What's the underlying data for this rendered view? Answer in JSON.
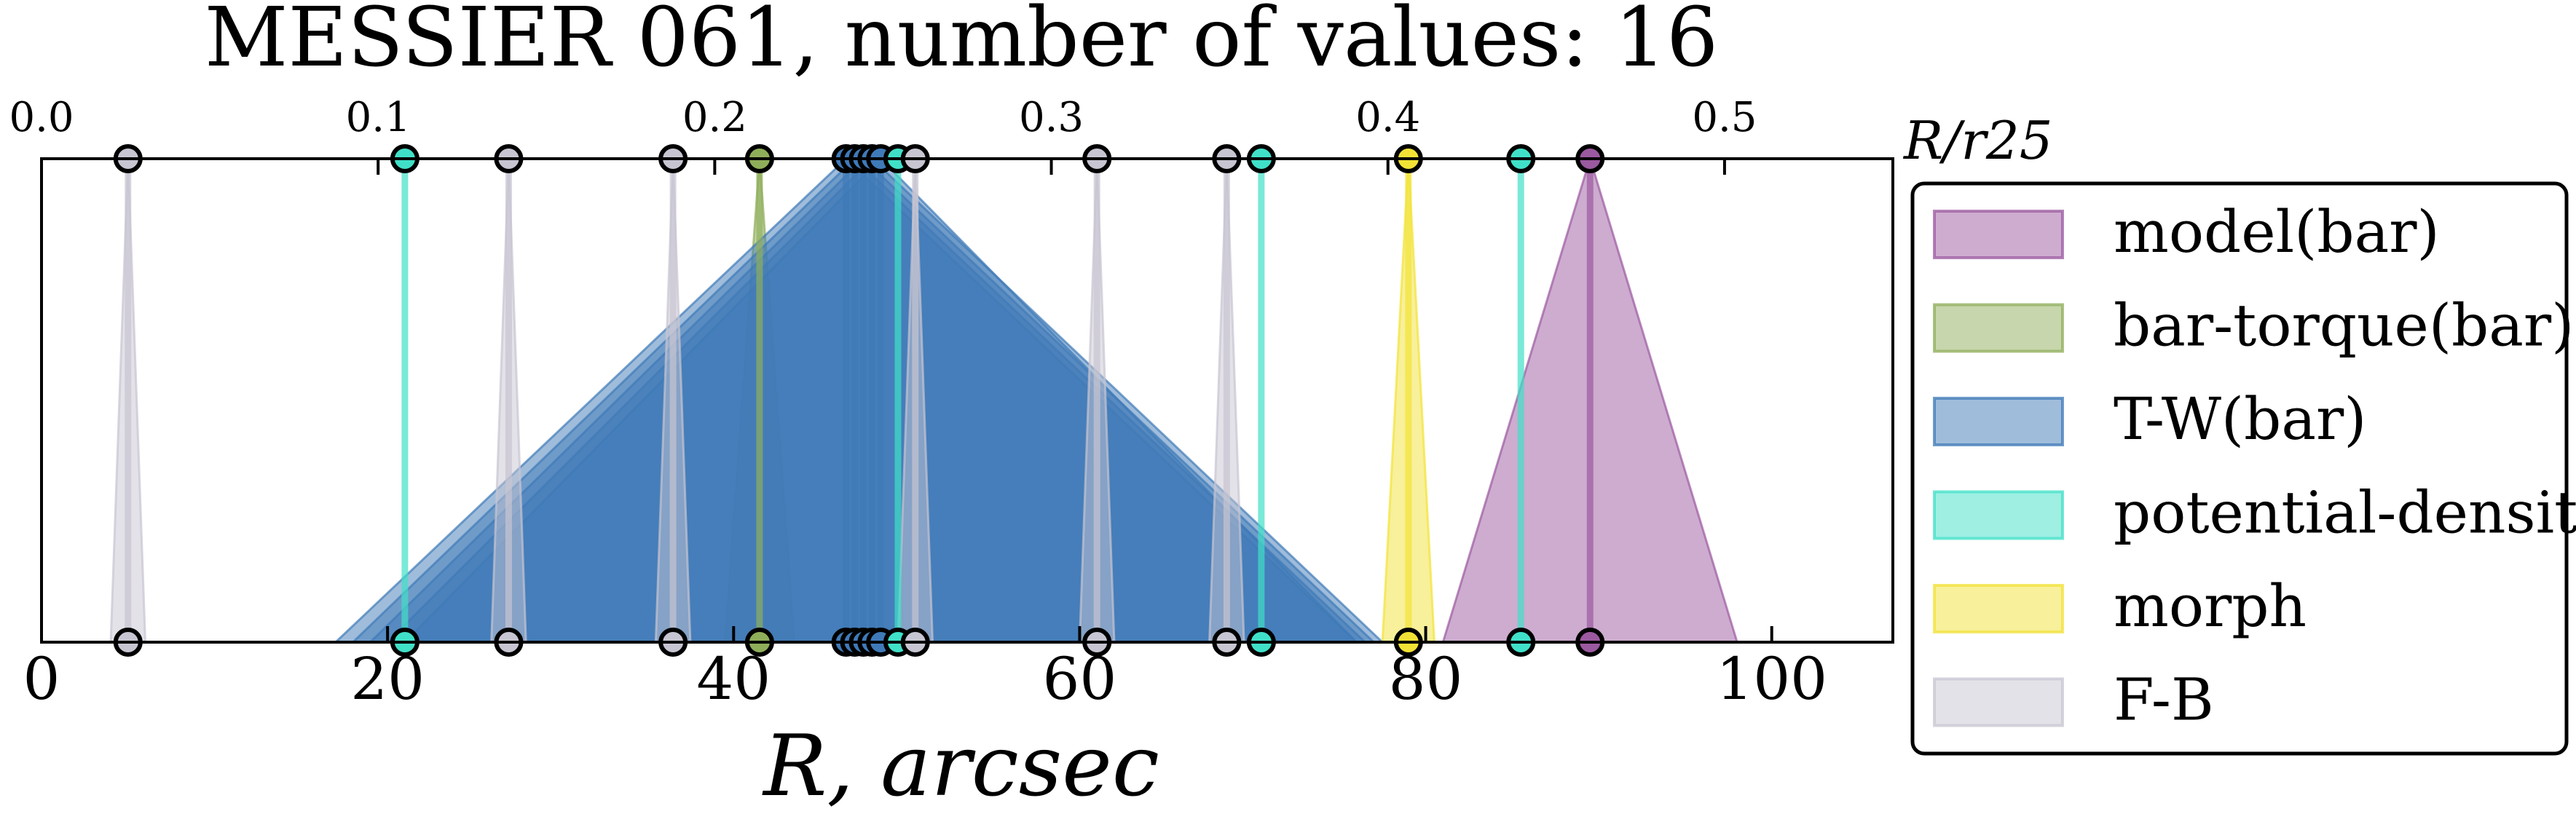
{
  "chart_data": {
    "type": "area",
    "title": "MESSIER 061, number of values: 16",
    "xlabel": "R, arcsec",
    "x2label": "R/r25",
    "xlim": [
      0,
      107
    ],
    "x2lim": [
      0,
      0.55
    ],
    "xticks": [
      0,
      20,
      40,
      60,
      80,
      100
    ],
    "x2ticks": [
      0.0,
      0.1,
      0.2,
      0.3,
      0.4,
      0.5
    ],
    "x2tick_labels": [
      "0.0",
      "0.1",
      "0.2",
      "0.3",
      "0.4",
      "0.5"
    ],
    "legend_position": "right",
    "series": [
      {
        "name": "model(bar)",
        "color": "#9b59a0",
        "points": [
          {
            "x": 89.5,
            "lo": 81.0,
            "hi": 98.0
          }
        ]
      },
      {
        "name": "bar-torque(bar)",
        "color": "#8fae5a",
        "points": [
          {
            "x": 41.5,
            "lo": 39.5,
            "hi": 43.5
          }
        ]
      },
      {
        "name": "T-W(bar)",
        "color": "#3f7ab8",
        "points": [
          {
            "x": 46.5,
            "lo": 17.0,
            "hi": 76.0
          },
          {
            "x": 47.0,
            "lo": 18.0,
            "hi": 76.5
          },
          {
            "x": 47.5,
            "lo": 19.0,
            "hi": 77.0
          },
          {
            "x": 48.0,
            "lo": 20.0,
            "hi": 77.5
          },
          {
            "x": 48.5,
            "lo": 21.0,
            "hi": 76.0
          }
        ]
      },
      {
        "name": "potential-density",
        "color": "#40e0c8",
        "points": [
          {
            "x": 21.0,
            "lo": 21.0,
            "hi": 21.0
          },
          {
            "x": 49.5,
            "lo": 49.5,
            "hi": 49.5
          },
          {
            "x": 70.5,
            "lo": 70.5,
            "hi": 70.5
          },
          {
            "x": 85.5,
            "lo": 85.5,
            "hi": 85.5
          }
        ]
      },
      {
        "name": "morph",
        "color": "#f2e236",
        "points": [
          {
            "x": 79.0,
            "lo": 77.5,
            "hi": 80.5
          }
        ]
      },
      {
        "name": "F-B",
        "color": "#c8c5d2",
        "points": [
          {
            "x": 5.0,
            "lo": 4.0,
            "hi": 6.0
          },
          {
            "x": 27.0,
            "lo": 26.0,
            "hi": 28.0
          },
          {
            "x": 36.5,
            "lo": 35.5,
            "hi": 37.5
          },
          {
            "x": 50.5,
            "lo": 49.5,
            "hi": 51.5
          },
          {
            "x": 61.0,
            "lo": 60.0,
            "hi": 62.0
          },
          {
            "x": 68.5,
            "lo": 67.5,
            "hi": 69.5
          }
        ]
      }
    ]
  }
}
